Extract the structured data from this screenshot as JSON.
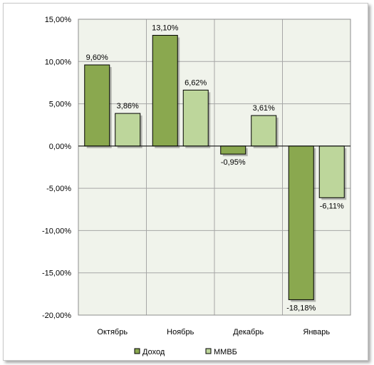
{
  "chart_data": {
    "type": "bar",
    "categories": [
      "Октябрь",
      "Ноябрь",
      "Декабрь",
      "Январь"
    ],
    "series": [
      {
        "name": "Доход",
        "values": [
          9.6,
          13.1,
          -0.95,
          -18.18
        ],
        "labels": [
          "9,60%",
          "13,10%",
          "-0,95%",
          "-18,18%"
        ],
        "color": "#8aa84f"
      },
      {
        "name": "ММВБ",
        "values": [
          3.86,
          6.62,
          3.61,
          -6.11
        ],
        "labels": [
          "3,86%",
          "6,62%",
          "3,61%",
          "-6,11%"
        ],
        "color": "#bdd69b"
      }
    ],
    "ylim": [
      -20,
      15
    ],
    "yticks": [
      {
        "value": 15,
        "label": "15,00%"
      },
      {
        "value": 10,
        "label": "10,00%"
      },
      {
        "value": 5,
        "label": "5,00%"
      },
      {
        "value": 0,
        "label": "0,00%"
      },
      {
        "value": -5,
        "label": "-5,00%"
      },
      {
        "value": -10,
        "label": "-10,00%"
      },
      {
        "value": -15,
        "label": "-15,00%"
      },
      {
        "value": -20,
        "label": "-20,00%"
      }
    ],
    "grid": true,
    "legend": "bottom",
    "plot_background": "#f0f3eb"
  }
}
